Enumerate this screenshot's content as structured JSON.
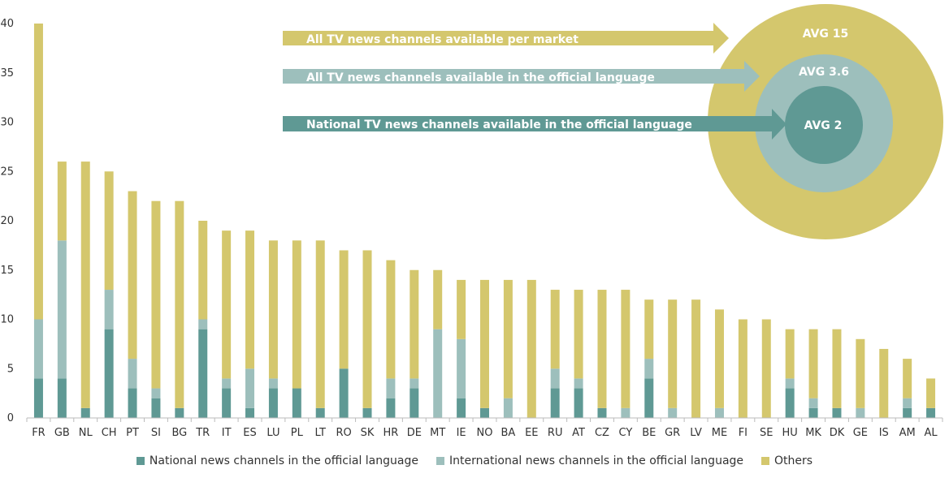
{
  "chart_data": {
    "type": "bar",
    "stacked": true,
    "categories": [
      "FR",
      "GB",
      "NL",
      "CH",
      "PT",
      "SI",
      "BG",
      "TR",
      "IT",
      "ES",
      "LU",
      "PL",
      "LT",
      "RO",
      "SK",
      "HR",
      "DE",
      "MT",
      "IE",
      "NO",
      "BA",
      "EE",
      "RU",
      "AT",
      "CZ",
      "CY",
      "BE",
      "GR",
      "LV",
      "ME",
      "FI",
      "SE",
      "HU",
      "MK",
      "DK",
      "GE",
      "IS",
      "AM",
      "AL"
    ],
    "series": [
      {
        "name": "National news channels in the official language",
        "color": "#5f9994",
        "values": [
          4,
          4,
          1,
          9,
          3,
          2,
          1,
          9,
          3,
          1,
          3,
          3,
          1,
          5,
          1,
          2,
          3,
          0,
          2,
          1,
          0,
          0,
          3,
          3,
          1,
          0,
          4,
          0,
          0,
          0,
          0,
          0,
          3,
          1,
          1,
          0,
          0,
          1,
          1
        ]
      },
      {
        "name": "International news channels in the official language",
        "color": "#9dbfbc",
        "values": [
          6,
          14,
          0,
          4,
          3,
          1,
          0,
          1,
          1,
          4,
          1,
          0,
          0,
          0,
          0,
          2,
          1,
          9,
          6,
          0,
          2,
          0,
          2,
          1,
          0,
          1,
          2,
          1,
          0,
          1,
          0,
          0,
          1,
          1,
          0,
          1,
          0,
          1,
          0
        ]
      },
      {
        "name": "Others",
        "color": "#d4c76d",
        "values": [
          30,
          8,
          25,
          12,
          17,
          19,
          21,
          10,
          15,
          14,
          14,
          15,
          17,
          12,
          16,
          12,
          11,
          6,
          6,
          13,
          12,
          14,
          8,
          9,
          12,
          12,
          6,
          11,
          12,
          10,
          10,
          10,
          5,
          7,
          8,
          7,
          7,
          4,
          3
        ]
      }
    ],
    "totals": [
      40,
      26,
      26,
      25,
      23,
      22,
      22,
      20,
      19,
      19,
      18,
      18,
      18,
      17,
      17,
      16,
      15,
      15,
      14,
      14,
      14,
      14,
      13,
      13,
      13,
      13,
      12,
      12,
      12,
      11,
      10,
      10,
      9,
      9,
      9,
      8,
      7,
      6,
      4
    ],
    "yticks": [
      0,
      5,
      10,
      15,
      20,
      25,
      30,
      35,
      40
    ],
    "ylim": [
      0,
      40
    ],
    "title": "",
    "xlabel": "",
    "ylabel": "",
    "legend_position": "bottom",
    "annotations": {
      "arrows": [
        {
          "text": "All TV news channels available  per market",
          "color": "#d4c76d"
        },
        {
          "text": "All TV news channels available  in the official language",
          "color": "#9dbfbc"
        },
        {
          "text": "National TV news channels available  in the official language",
          "color": "#5f9994"
        }
      ],
      "circles": [
        {
          "label": "AVG 15",
          "color": "#d4c76d"
        },
        {
          "label": "AVG 3.6",
          "color": "#9dbfbc"
        },
        {
          "label": "AVG 2",
          "color": "#5f9994"
        }
      ]
    }
  }
}
